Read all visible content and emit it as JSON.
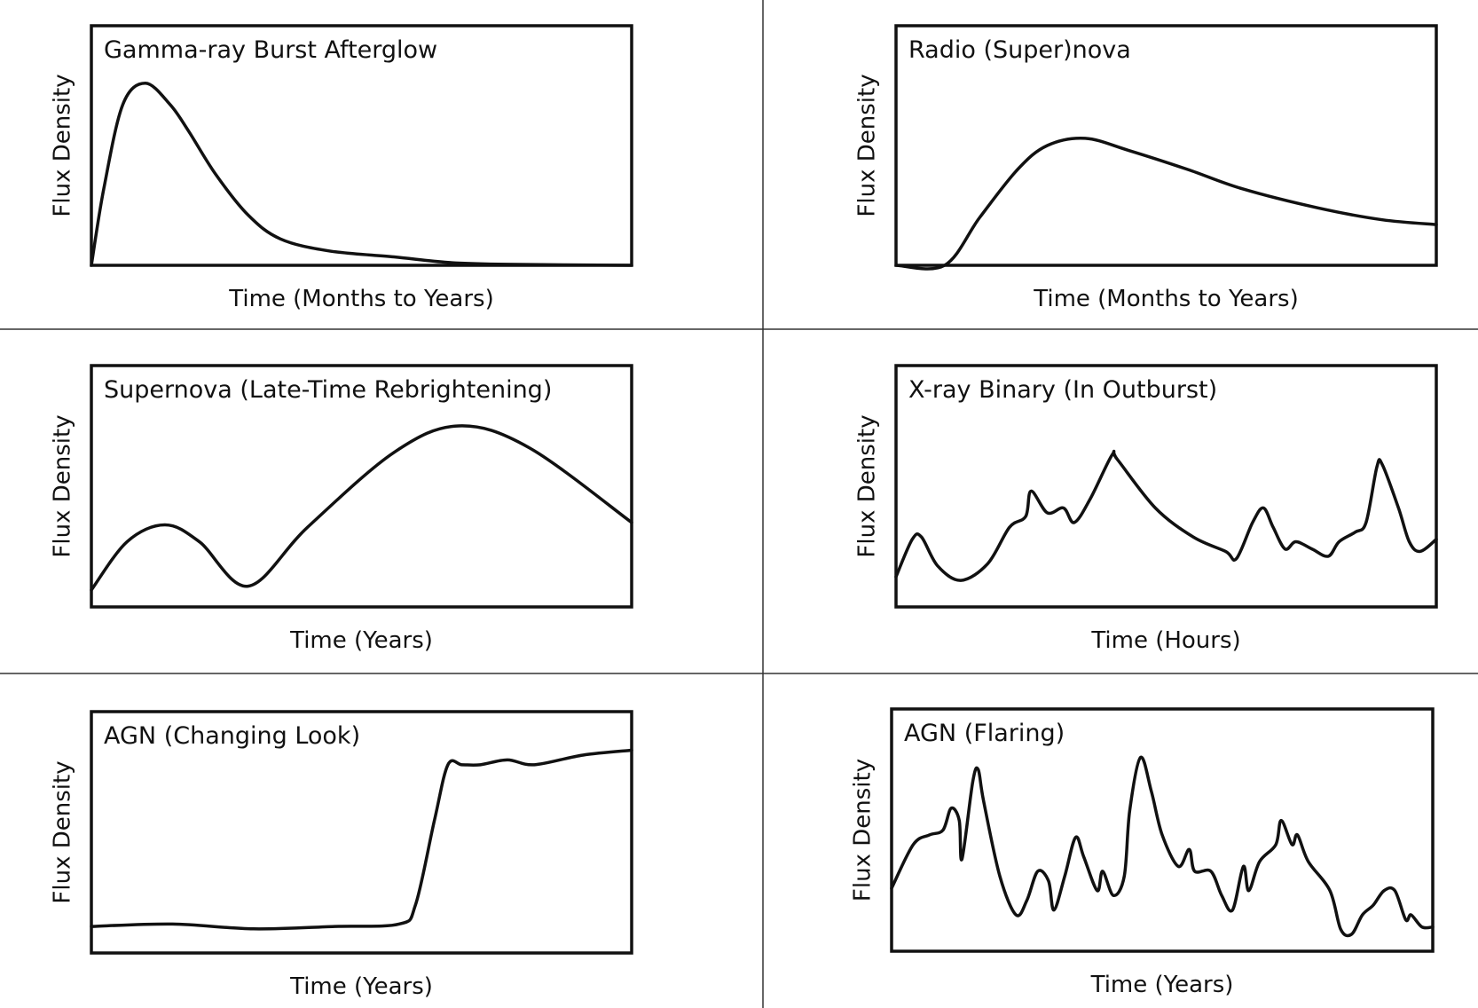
{
  "chart_data": [
    {
      "type": "line",
      "title": "Gamma-ray Burst Afterglow",
      "xlabel": "Time (Months to Years)",
      "ylabel": "Flux Density",
      "xlim": [
        0,
        1
      ],
      "ylim": [
        0,
        1
      ],
      "x": [
        0,
        0.023,
        0.058,
        0.1,
        0.146,
        0.18,
        0.23,
        0.29,
        0.35,
        0.44,
        0.56,
        0.66,
        0.77,
        1
      ],
      "y": [
        0,
        0.32,
        0.67,
        0.76,
        0.67,
        0.56,
        0.38,
        0.21,
        0.11,
        0.06,
        0.035,
        0.012,
        0.004,
        0
      ]
    },
    {
      "type": "line",
      "title": "Radio (Super)nova",
      "xlabel": "Time (Months to Years)",
      "ylabel": "Flux Density",
      "xlim": [
        0,
        1
      ],
      "ylim": [
        0,
        1
      ],
      "x": [
        0.09,
        0.155,
        0.225,
        0.28,
        0.35,
        0.43,
        0.54,
        0.64,
        0.78,
        0.9,
        1
      ],
      "y": [
        0,
        0.2,
        0.4,
        0.5,
        0.53,
        0.48,
        0.4,
        0.32,
        0.24,
        0.19,
        0.17
      ]
    },
    {
      "type": "line",
      "title": "Supernova (Late-Time Rebrightening)",
      "xlabel": "Time (Years)",
      "ylabel": "Flux Density",
      "xlim": [
        0,
        1
      ],
      "ylim": [
        0,
        1
      ],
      "x": [
        0,
        0.066,
        0.136,
        0.2,
        0.29,
        0.4,
        0.56,
        0.68,
        0.81,
        1
      ],
      "y": [
        0.07,
        0.27,
        0.34,
        0.27,
        0.086,
        0.33,
        0.64,
        0.75,
        0.66,
        0.35
      ]
    },
    {
      "type": "line",
      "title": "X-ray Binary (In Outburst)",
      "xlabel": "Time (Hours)",
      "ylabel": "Flux Density",
      "xlim": [
        0,
        1
      ],
      "ylim": [
        0,
        1
      ],
      "x": [
        0,
        0.03,
        0.047,
        0.077,
        0.12,
        0.17,
        0.21,
        0.24,
        0.25,
        0.28,
        0.31,
        0.33,
        0.36,
        0.4,
        0.41,
        0.48,
        0.55,
        0.61,
        0.63,
        0.66,
        0.68,
        0.698,
        0.72,
        0.74,
        0.77,
        0.8,
        0.82,
        0.85,
        0.87,
        0.89,
        0.9,
        0.93,
        0.95,
        0.97,
        1
      ],
      "y": [
        0.125,
        0.28,
        0.29,
        0.17,
        0.11,
        0.18,
        0.33,
        0.375,
        0.48,
        0.39,
        0.41,
        0.35,
        0.45,
        0.63,
        0.61,
        0.41,
        0.29,
        0.23,
        0.2,
        0.35,
        0.41,
        0.33,
        0.24,
        0.27,
        0.24,
        0.21,
        0.27,
        0.31,
        0.35,
        0.58,
        0.59,
        0.41,
        0.27,
        0.23,
        0.28
      ]
    },
    {
      "type": "line",
      "title": "AGN (Changing Look)",
      "xlabel": "Time (Years)",
      "ylabel": "Flux Density",
      "xlim": [
        0,
        1
      ],
      "ylim": [
        0,
        1
      ],
      "x": [
        0,
        0.15,
        0.3,
        0.45,
        0.57,
        0.6,
        0.635,
        0.66,
        0.686,
        0.72,
        0.77,
        0.82,
        0.91,
        1
      ],
      "y": [
        0.11,
        0.12,
        0.1,
        0.11,
        0.12,
        0.2,
        0.55,
        0.78,
        0.78,
        0.78,
        0.8,
        0.78,
        0.82,
        0.84
      ]
    },
    {
      "type": "line",
      "title": "AGN (Flaring)",
      "xlabel": "Time (Years)",
      "ylabel": "Flux Density",
      "xlim": [
        0,
        1
      ],
      "ylim": [
        0,
        1
      ],
      "x": [
        0,
        0.04,
        0.07,
        0.095,
        0.11,
        0.125,
        0.13,
        0.15,
        0.16,
        0.17,
        0.2,
        0.23,
        0.25,
        0.27,
        0.29,
        0.3,
        0.32,
        0.34,
        0.355,
        0.38,
        0.39,
        0.41,
        0.43,
        0.44,
        0.46,
        0.48,
        0.5,
        0.53,
        0.55,
        0.56,
        0.59,
        0.61,
        0.63,
        0.65,
        0.66,
        0.68,
        0.71,
        0.72,
        0.74,
        0.75,
        0.77,
        0.81,
        0.83,
        0.85,
        0.87,
        0.89,
        0.91,
        0.93,
        0.95,
        0.96,
        0.98,
        1
      ],
      "y": [
        0.26,
        0.44,
        0.48,
        0.5,
        0.59,
        0.54,
        0.38,
        0.7,
        0.75,
        0.62,
        0.31,
        0.15,
        0.21,
        0.33,
        0.29,
        0.17,
        0.31,
        0.47,
        0.39,
        0.25,
        0.33,
        0.23,
        0.31,
        0.58,
        0.8,
        0.66,
        0.48,
        0.35,
        0.42,
        0.33,
        0.33,
        0.23,
        0.17,
        0.35,
        0.25,
        0.37,
        0.44,
        0.54,
        0.44,
        0.48,
        0.37,
        0.25,
        0.09,
        0.07,
        0.15,
        0.19,
        0.25,
        0.25,
        0.13,
        0.15,
        0.1,
        0.1
      ]
    }
  ]
}
